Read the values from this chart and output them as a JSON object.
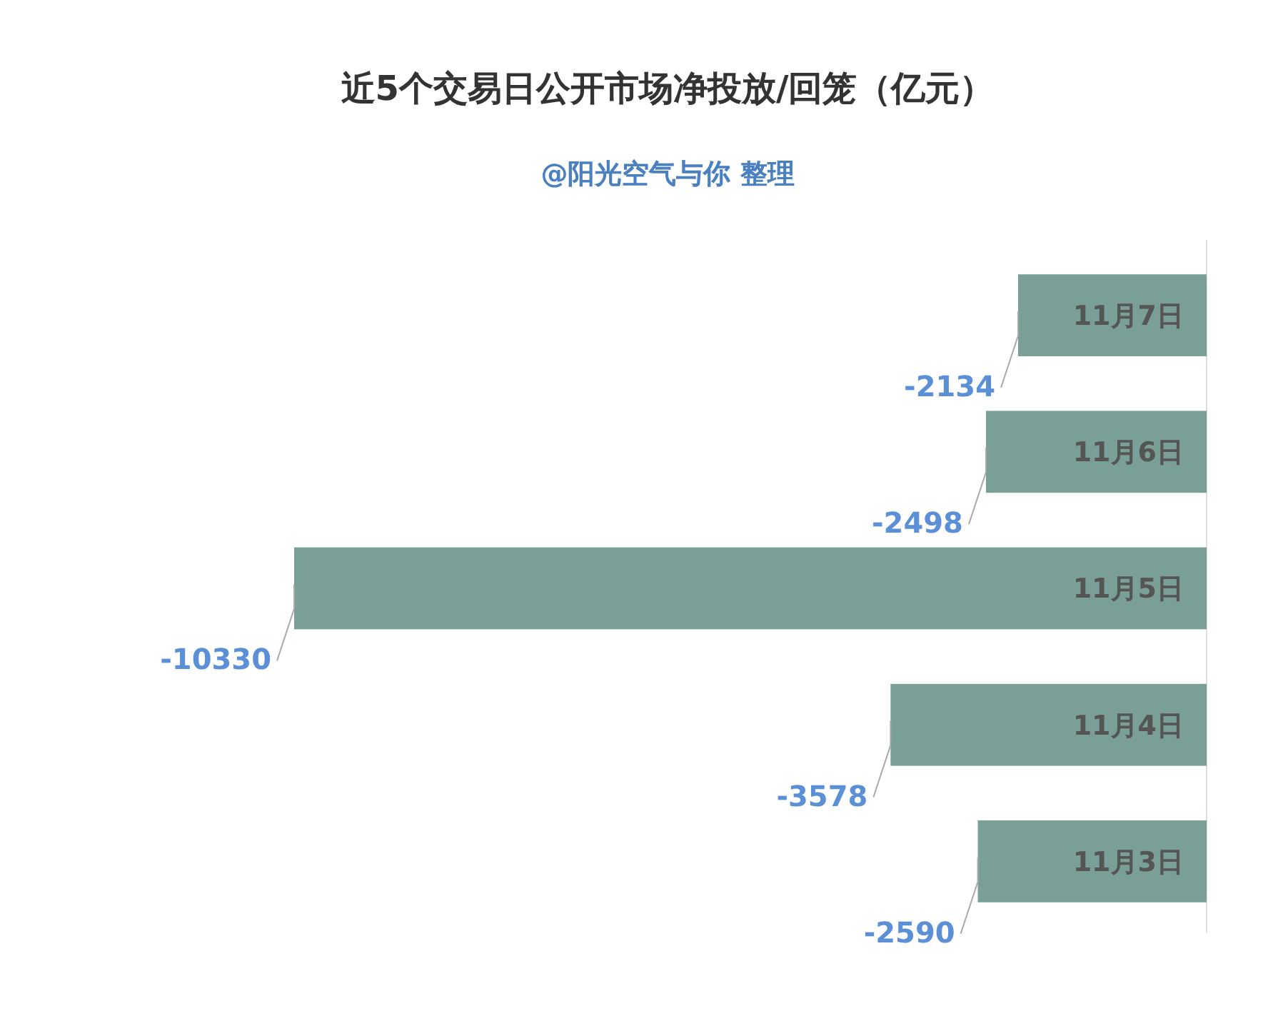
{
  "chart_data": {
    "type": "bar",
    "orientation": "horizontal",
    "title": "近5个交易日公开市场净投放/回笼（亿元）",
    "subtitle": "@阳光空气与你 整理",
    "categories": [
      "11月7日",
      "11月6日",
      "11月5日",
      "11月4日",
      "11月3日"
    ],
    "values": [
      -2134,
      -2498,
      -10330,
      -3578,
      -2590
    ],
    "color": "#7a9f96",
    "data_labels": true,
    "tick_labels": "y"
  }
}
